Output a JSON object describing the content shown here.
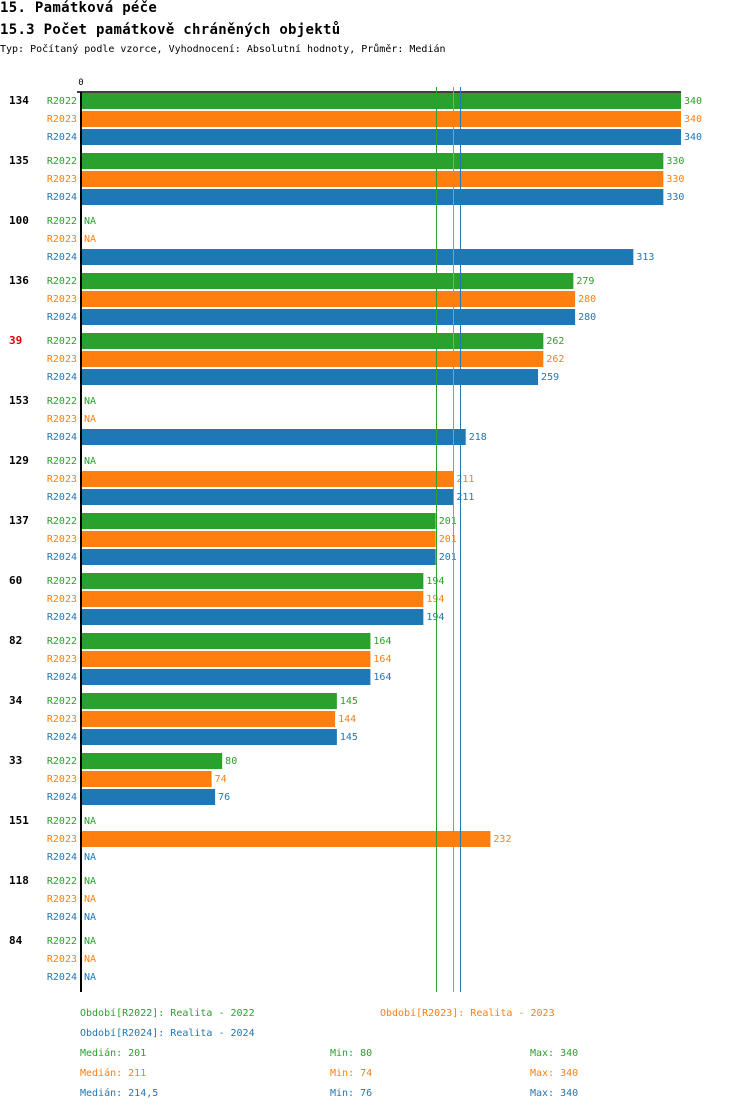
{
  "header": {
    "section_title": "15. Památková péče",
    "chart_title": "15.3 Počet památkově chráněných objektů",
    "subtitle": "Typ: Počítaný podle vzorce, Vyhodnocení: Absolutní hodnoty, Průměr: Medián"
  },
  "colors": {
    "R2022": "#2ca02c",
    "R2023": "#ff7f0e",
    "R2024": "#1f77b4",
    "highlight_label": "#e00000",
    "axis": "#000000"
  },
  "chart_data": {
    "type": "bar",
    "orientation": "horizontal",
    "title": "15.3 Počet památkově chráněných objektů",
    "xlabel": "",
    "ylabel": "",
    "xlim": [
      0,
      340
    ],
    "x_tick_labels": [
      "0"
    ],
    "grid": false,
    "na_label": "NA",
    "series_names": [
      "R2022",
      "R2023",
      "R2024"
    ],
    "categories": [
      "134",
      "135",
      "100",
      "136",
      "39",
      "153",
      "129",
      "137",
      "60",
      "82",
      "34",
      "33",
      "151",
      "118",
      "84"
    ],
    "highlighted_categories": [
      "39"
    ],
    "series": [
      {
        "name": "R2022",
        "values": [
          340,
          330,
          null,
          279,
          262,
          null,
          null,
          201,
          194,
          164,
          145,
          80,
          null,
          null,
          null
        ]
      },
      {
        "name": "R2023",
        "values": [
          340,
          330,
          null,
          280,
          262,
          null,
          211,
          201,
          194,
          164,
          144,
          74,
          232,
          null,
          null
        ]
      },
      {
        "name": "R2024",
        "values": [
          340,
          330,
          313,
          280,
          259,
          218,
          211,
          201,
          194,
          164,
          145,
          76,
          null,
          null,
          null
        ]
      }
    ],
    "reference_lines": [
      {
        "series": "R2022",
        "type": "median",
        "value": 201
      },
      {
        "series": "R2023",
        "type": "median",
        "value": 211
      },
      {
        "series": "R2024",
        "type": "median",
        "value": 214.5
      }
    ]
  },
  "legend": {
    "periods": [
      {
        "series": "R2022",
        "text": "Období[R2022]: Realita - 2022"
      },
      {
        "series": "R2023",
        "text": "Období[R2023]: Realita - 2023"
      },
      {
        "series": "R2024",
        "text": "Období[R2024]: Realita - 2024"
      }
    ],
    "stats": [
      {
        "series": "R2022",
        "median": "Medián: 201",
        "min": "Min: 80",
        "max": "Max: 340"
      },
      {
        "series": "R2023",
        "median": "Medián: 211",
        "min": "Min: 74",
        "max": "Max: 340"
      },
      {
        "series": "R2024",
        "median": "Medián: 214,5",
        "min": "Min: 76",
        "max": "Max: 340"
      }
    ]
  }
}
